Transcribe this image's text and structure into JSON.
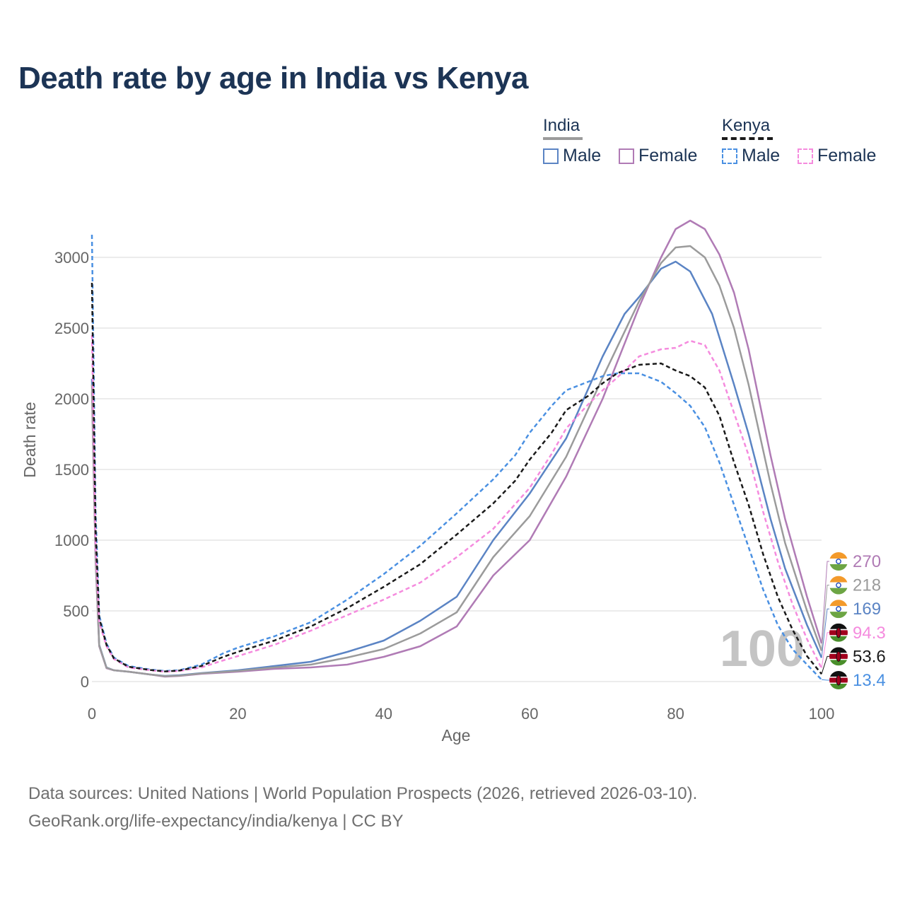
{
  "title": "Death rate by age in India vs Kenya",
  "legend": {
    "groups": [
      {
        "name": "India",
        "line_color": "#9b9b9b",
        "dashed": false
      },
      {
        "name": "Kenya",
        "line_color": "#1a1a1a",
        "dashed": true
      }
    ],
    "items": [
      {
        "label": "Male",
        "color": "#5b84c4",
        "dashed": false
      },
      {
        "label": "Female",
        "color": "#b07bb5",
        "dashed": false
      },
      {
        "label": "Male",
        "color": "#4a90e2",
        "dashed": true
      },
      {
        "label": "Female",
        "color": "#f58bde",
        "dashed": true
      }
    ]
  },
  "chart_data": {
    "type": "line",
    "xlabel": "Age",
    "ylabel": "Death rate",
    "xlim": [
      0,
      100
    ],
    "ylim": [
      0,
      3300
    ],
    "x_ticks": [
      0,
      20,
      40,
      60,
      80,
      100
    ],
    "y_ticks": [
      0,
      500,
      1000,
      1500,
      2000,
      2500,
      3000
    ],
    "grid": true,
    "age_watermark": "100",
    "series": [
      {
        "name": "India Male",
        "country": "India",
        "color": "#5b84c4",
        "dashed": false,
        "end_label": "169",
        "points": [
          [
            0,
            2140
          ],
          [
            0.5,
            900
          ],
          [
            1,
            260
          ],
          [
            2,
            100
          ],
          [
            3,
            80
          ],
          [
            5,
            70
          ],
          [
            8,
            50
          ],
          [
            10,
            40
          ],
          [
            12,
            45
          ],
          [
            15,
            60
          ],
          [
            20,
            80
          ],
          [
            25,
            110
          ],
          [
            30,
            140
          ],
          [
            35,
            210
          ],
          [
            40,
            290
          ],
          [
            45,
            430
          ],
          [
            50,
            600
          ],
          [
            55,
            1000
          ],
          [
            60,
            1330
          ],
          [
            65,
            1720
          ],
          [
            70,
            2300
          ],
          [
            73,
            2600
          ],
          [
            75,
            2720
          ],
          [
            78,
            2920
          ],
          [
            80,
            2970
          ],
          [
            82,
            2900
          ],
          [
            85,
            2600
          ],
          [
            88,
            2100
          ],
          [
            90,
            1750
          ],
          [
            93,
            1150
          ],
          [
            95,
            800
          ],
          [
            98,
            400
          ],
          [
            100,
            169
          ]
        ]
      },
      {
        "name": "India Female",
        "country": "India",
        "color": "#b07bb5",
        "dashed": false,
        "end_label": "270",
        "points": [
          [
            0,
            2050
          ],
          [
            0.5,
            850
          ],
          [
            1,
            250
          ],
          [
            2,
            95
          ],
          [
            3,
            80
          ],
          [
            5,
            70
          ],
          [
            8,
            50
          ],
          [
            10,
            35
          ],
          [
            12,
            40
          ],
          [
            15,
            55
          ],
          [
            20,
            70
          ],
          [
            25,
            90
          ],
          [
            30,
            100
          ],
          [
            35,
            120
          ],
          [
            40,
            175
          ],
          [
            45,
            250
          ],
          [
            50,
            390
          ],
          [
            55,
            750
          ],
          [
            60,
            1000
          ],
          [
            65,
            1450
          ],
          [
            70,
            2000
          ],
          [
            75,
            2650
          ],
          [
            78,
            3000
          ],
          [
            80,
            3200
          ],
          [
            82,
            3260
          ],
          [
            84,
            3200
          ],
          [
            86,
            3020
          ],
          [
            88,
            2750
          ],
          [
            90,
            2350
          ],
          [
            93,
            1600
          ],
          [
            95,
            1150
          ],
          [
            98,
            600
          ],
          [
            100,
            270
          ]
        ]
      },
      {
        "name": "India Total",
        "country": "India",
        "color": "#9b9b9b",
        "dashed": false,
        "end_label": "218",
        "points": [
          [
            0,
            2100
          ],
          [
            0.5,
            880
          ],
          [
            1,
            255
          ],
          [
            2,
            98
          ],
          [
            3,
            80
          ],
          [
            5,
            70
          ],
          [
            8,
            50
          ],
          [
            10,
            38
          ],
          [
            12,
            42
          ],
          [
            15,
            58
          ],
          [
            20,
            75
          ],
          [
            25,
            100
          ],
          [
            30,
            120
          ],
          [
            35,
            170
          ],
          [
            40,
            230
          ],
          [
            45,
            340
          ],
          [
            50,
            490
          ],
          [
            55,
            880
          ],
          [
            60,
            1170
          ],
          [
            65,
            1590
          ],
          [
            70,
            2150
          ],
          [
            75,
            2690
          ],
          [
            78,
            2960
          ],
          [
            80,
            3070
          ],
          [
            82,
            3080
          ],
          [
            84,
            3000
          ],
          [
            86,
            2800
          ],
          [
            88,
            2500
          ],
          [
            90,
            2100
          ],
          [
            93,
            1400
          ],
          [
            95,
            980
          ],
          [
            98,
            500
          ],
          [
            100,
            218
          ]
        ]
      },
      {
        "name": "Kenya Male",
        "country": "Kenya",
        "color": "#4a90e2",
        "dashed": true,
        "end_label": "13.4",
        "points": [
          [
            0,
            3160
          ],
          [
            0.5,
            1200
          ],
          [
            1,
            470
          ],
          [
            2,
            270
          ],
          [
            3,
            170
          ],
          [
            5,
            110
          ],
          [
            8,
            85
          ],
          [
            10,
            75
          ],
          [
            12,
            80
          ],
          [
            15,
            120
          ],
          [
            18,
            200
          ],
          [
            20,
            240
          ],
          [
            25,
            320
          ],
          [
            30,
            420
          ],
          [
            35,
            580
          ],
          [
            40,
            760
          ],
          [
            45,
            960
          ],
          [
            50,
            1190
          ],
          [
            55,
            1430
          ],
          [
            58,
            1600
          ],
          [
            60,
            1760
          ],
          [
            63,
            1950
          ],
          [
            65,
            2060
          ],
          [
            68,
            2120
          ],
          [
            70,
            2160
          ],
          [
            72,
            2180
          ],
          [
            75,
            2180
          ],
          [
            78,
            2120
          ],
          [
            80,
            2040
          ],
          [
            82,
            1950
          ],
          [
            84,
            1800
          ],
          [
            86,
            1550
          ],
          [
            88,
            1250
          ],
          [
            90,
            950
          ],
          [
            92,
            650
          ],
          [
            94,
            400
          ],
          [
            96,
            230
          ],
          [
            98,
            120
          ],
          [
            100,
            13.4
          ]
        ]
      },
      {
        "name": "Kenya Female",
        "country": "Kenya",
        "color": "#f58bde",
        "dashed": true,
        "end_label": "94.3",
        "points": [
          [
            0,
            2450
          ],
          [
            0.5,
            950
          ],
          [
            1,
            420
          ],
          [
            2,
            250
          ],
          [
            3,
            160
          ],
          [
            5,
            100
          ],
          [
            8,
            80
          ],
          [
            10,
            70
          ],
          [
            12,
            75
          ],
          [
            15,
            100
          ],
          [
            18,
            150
          ],
          [
            20,
            180
          ],
          [
            25,
            260
          ],
          [
            30,
            360
          ],
          [
            35,
            470
          ],
          [
            40,
            580
          ],
          [
            45,
            700
          ],
          [
            50,
            880
          ],
          [
            55,
            1080
          ],
          [
            60,
            1370
          ],
          [
            63,
            1610
          ],
          [
            65,
            1790
          ],
          [
            68,
            1960
          ],
          [
            70,
            2060
          ],
          [
            72,
            2150
          ],
          [
            75,
            2300
          ],
          [
            78,
            2350
          ],
          [
            80,
            2360
          ],
          [
            82,
            2410
          ],
          [
            84,
            2380
          ],
          [
            86,
            2200
          ],
          [
            88,
            1900
          ],
          [
            90,
            1600
          ],
          [
            92,
            1200
          ],
          [
            94,
            850
          ],
          [
            96,
            550
          ],
          [
            98,
            300
          ],
          [
            100,
            94.3
          ]
        ]
      },
      {
        "name": "Kenya Total",
        "country": "Kenya",
        "color": "#1a1a1a",
        "dashed": true,
        "end_label": "53.6",
        "points": [
          [
            0,
            2820
          ],
          [
            0.5,
            1080
          ],
          [
            1,
            450
          ],
          [
            2,
            260
          ],
          [
            3,
            165
          ],
          [
            5,
            105
          ],
          [
            8,
            82
          ],
          [
            10,
            72
          ],
          [
            12,
            78
          ],
          [
            15,
            110
          ],
          [
            18,
            175
          ],
          [
            20,
            210
          ],
          [
            25,
            290
          ],
          [
            30,
            390
          ],
          [
            35,
            520
          ],
          [
            40,
            670
          ],
          [
            45,
            830
          ],
          [
            50,
            1040
          ],
          [
            55,
            1260
          ],
          [
            58,
            1420
          ],
          [
            60,
            1570
          ],
          [
            63,
            1760
          ],
          [
            65,
            1920
          ],
          [
            68,
            2020
          ],
          [
            70,
            2110
          ],
          [
            72,
            2180
          ],
          [
            75,
            2240
          ],
          [
            78,
            2250
          ],
          [
            80,
            2200
          ],
          [
            82,
            2160
          ],
          [
            84,
            2080
          ],
          [
            86,
            1880
          ],
          [
            88,
            1550
          ],
          [
            90,
            1250
          ],
          [
            92,
            900
          ],
          [
            94,
            600
          ],
          [
            96,
            370
          ],
          [
            98,
            180
          ],
          [
            100,
            53.6
          ]
        ]
      }
    ]
  },
  "footer": {
    "line1": "Data sources: United Nations | World Population Prospects (2026, retrieved 2026-03-10).",
    "line2": "GeoRank.org/life-expectancy/india/kenya | CC BY"
  }
}
